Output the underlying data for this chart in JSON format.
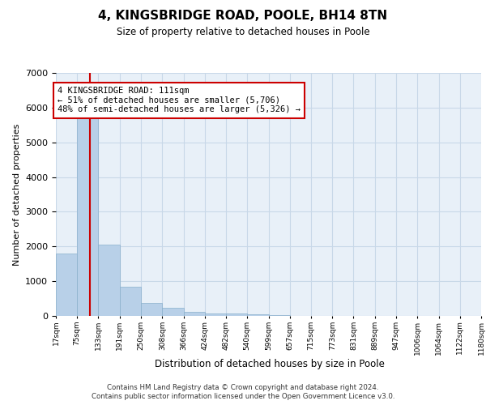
{
  "title": "4, KINGSBRIDGE ROAD, POOLE, BH14 8TN",
  "subtitle": "Size of property relative to detached houses in Poole",
  "xlabel": "Distribution of detached houses by size in Poole",
  "ylabel": "Number of detached properties",
  "bar_color": "#b8d0e8",
  "bar_edge_color": "#8ab0cc",
  "grid_color": "#c8d8e8",
  "background_color": "#e8f0f8",
  "vline_color": "#cc0000",
  "annotation_text": "4 KINGSBRIDGE ROAD: 111sqm\n← 51% of detached houses are smaller (5,706)\n48% of semi-detached houses are larger (5,326) →",
  "annotation_box_color": "#ffffff",
  "annotation_box_edge": "#cc0000",
  "bin_edges": [
    17,
    75,
    133,
    191,
    250,
    308,
    366,
    424,
    482,
    540,
    599,
    657,
    715,
    773,
    831,
    889,
    947,
    1006,
    1064,
    1122,
    1180
  ],
  "bin_labels": [
    "17sqm",
    "75sqm",
    "133sqm",
    "191sqm",
    "250sqm",
    "308sqm",
    "366sqm",
    "424sqm",
    "482sqm",
    "540sqm",
    "599sqm",
    "657sqm",
    "715sqm",
    "773sqm",
    "831sqm",
    "889sqm",
    "947sqm",
    "1006sqm",
    "1064sqm",
    "1122sqm",
    "1180sqm"
  ],
  "bar_heights": [
    1800,
    5750,
    2060,
    830,
    380,
    240,
    115,
    75,
    80,
    45,
    25,
    5,
    5,
    0,
    0,
    0,
    0,
    0,
    0,
    0
  ],
  "vline_x": 111,
  "ylim": [
    0,
    7000
  ],
  "yticks": [
    0,
    1000,
    2000,
    3000,
    4000,
    5000,
    6000,
    7000
  ],
  "footer_line1": "Contains HM Land Registry data © Crown copyright and database right 2024.",
  "footer_line2": "Contains public sector information licensed under the Open Government Licence v3.0."
}
